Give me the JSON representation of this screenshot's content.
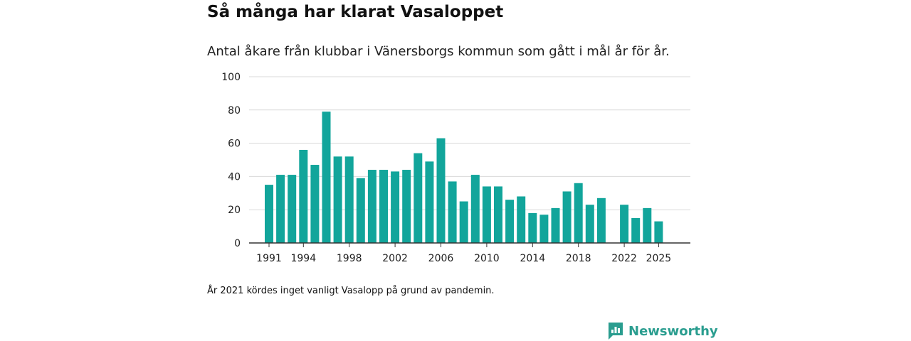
{
  "title": "Så många har klarat Vasaloppet",
  "subtitle": "Antal åkare från klubbar i Vänersborgs kommun som gått i mål år för år.",
  "footnote": "År 2021 kördes inget vanligt Vasalopp på grund av pandemin.",
  "brand": {
    "name": "Newsworthy",
    "icon": "newsworthy-logo-icon",
    "color": "#2a9d8f"
  },
  "colors": {
    "bar": "#12a59b",
    "grid": "#d9d9d9",
    "axis": "#333333"
  },
  "chart_data": {
    "type": "bar",
    "title": "Så många har klarat Vasaloppet",
    "xlabel": "",
    "ylabel": "",
    "ylim": [
      0,
      100
    ],
    "yticks": [
      0,
      20,
      40,
      60,
      80,
      100
    ],
    "xticks": [
      1991,
      1994,
      1998,
      2002,
      2006,
      2010,
      2014,
      2018,
      2022,
      2025
    ],
    "categories": [
      1991,
      1992,
      1993,
      1994,
      1995,
      1996,
      1997,
      1998,
      1999,
      2000,
      2001,
      2002,
      2003,
      2004,
      2005,
      2006,
      2007,
      2008,
      2009,
      2010,
      2011,
      2012,
      2013,
      2014,
      2015,
      2016,
      2017,
      2018,
      2019,
      2020,
      2021,
      2022,
      2023,
      2024,
      2025
    ],
    "values": [
      35,
      41,
      41,
      56,
      47,
      79,
      52,
      52,
      39,
      44,
      44,
      43,
      44,
      54,
      49,
      63,
      37,
      25,
      41,
      34,
      34,
      26,
      28,
      18,
      17,
      21,
      31,
      36,
      23,
      27,
      null,
      23,
      15,
      21,
      13
    ],
    "grid": true
  }
}
